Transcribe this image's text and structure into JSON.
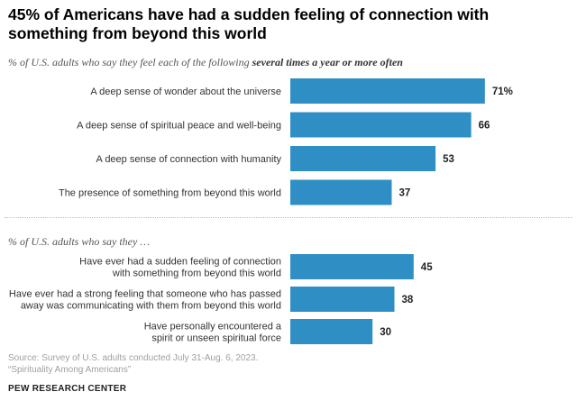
{
  "title": "45% of Americans have had a sudden feeling of connection with something from beyond this world",
  "subtitle1": {
    "prefix": "% of U.S. adults who say they feel each of the following ",
    "emphasis": "several times a year or more often"
  },
  "subtitle2": "% of U.S. adults who say they …",
  "colors": {
    "bar": "#2f8fc5"
  },
  "chart_data": [
    {
      "type": "bar",
      "orientation": "horizontal",
      "categories": [
        [
          "A deep sense of wonder about the universe"
        ],
        [
          "A deep sense of spiritual peace and well-being"
        ],
        [
          "A deep sense of connection with humanity"
        ],
        [
          "The presence of something from beyond this world"
        ]
      ],
      "values": [
        71,
        66,
        53,
        37
      ],
      "value_labels": [
        "71%",
        "66",
        "53",
        "37"
      ],
      "xlim": [
        0,
        100
      ],
      "grid": false
    },
    {
      "type": "bar",
      "orientation": "horizontal",
      "categories": [
        [
          "Have ever had a sudden feeling of connection",
          "with something from beyond this world"
        ],
        [
          "Have ever had a strong feeling that someone who has passed",
          "away was communicating with them from beyond this world"
        ],
        [
          "Have personally encountered a",
          "spirit or unseen spiritual force"
        ]
      ],
      "values": [
        45,
        38,
        30
      ],
      "value_labels": [
        "45",
        "38",
        "30"
      ],
      "xlim": [
        0,
        100
      ],
      "grid": false
    }
  ],
  "source": {
    "line1": "Source: Survey of U.S. adults conducted July 31-Aug. 6, 2023.",
    "line2": "“Spirituality Among Americans”"
  },
  "brand": "PEW RESEARCH CENTER"
}
